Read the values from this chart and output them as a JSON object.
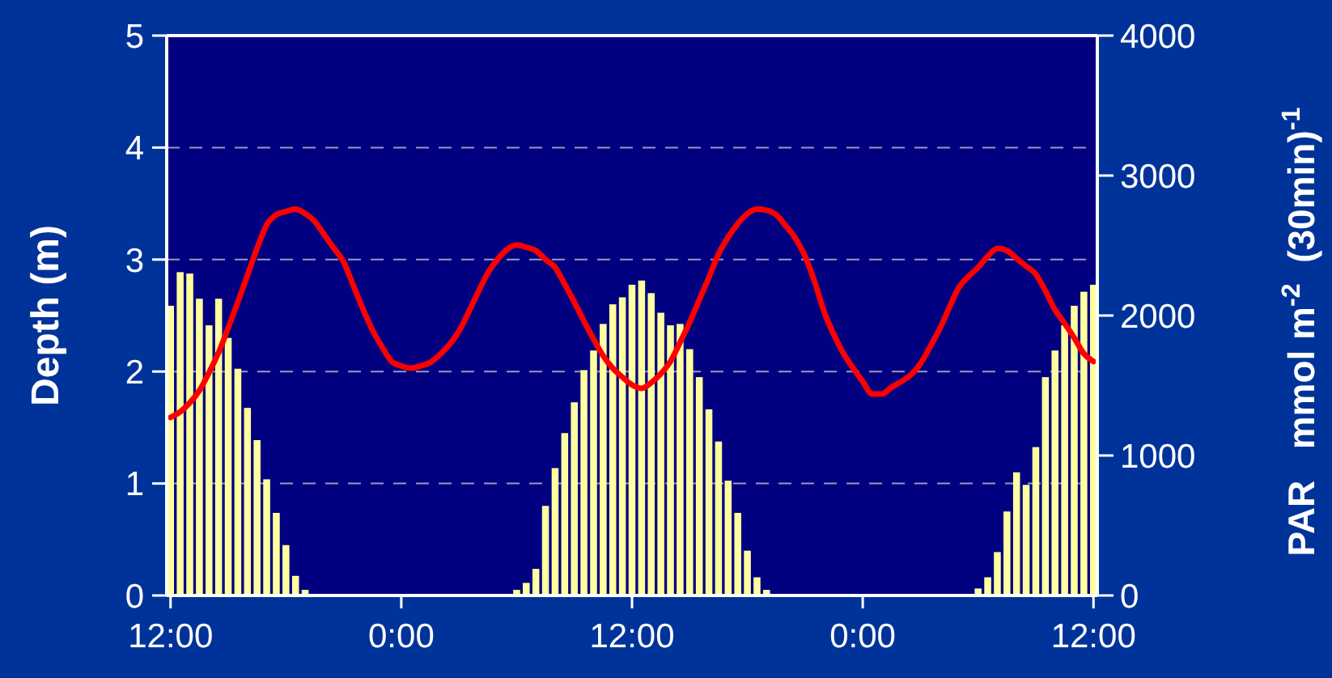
{
  "chart_data": {
    "type": "line",
    "ylabel": "Depth (m)",
    "y2label": "PAR   mmol m$^{-2}$  (30min)$^{-1}$",
    "categories": [
      "12:00",
      null,
      null,
      null,
      null,
      null,
      null,
      null,
      null,
      null,
      null,
      null,
      null,
      null,
      null,
      null,
      null,
      null,
      null,
      null,
      null,
      null,
      null,
      null,
      "0:00",
      null,
      null,
      null,
      null,
      null,
      null,
      null,
      null,
      null,
      null,
      null,
      null,
      null,
      null,
      null,
      null,
      null,
      null,
      null,
      null,
      null,
      null,
      null,
      "12:00",
      null,
      null,
      null,
      null,
      null,
      null,
      null,
      null,
      null,
      null,
      null,
      null,
      null,
      null,
      null,
      null,
      null,
      null,
      null,
      null,
      null,
      null,
      null,
      "0:00",
      null,
      null,
      null,
      null,
      null,
      null,
      null,
      null,
      null,
      null,
      null,
      null,
      null,
      null,
      null,
      null,
      null,
      null,
      null,
      null,
      null,
      null,
      null,
      "12:00"
    ],
    "ylim": [
      0,
      5
    ],
    "yticks": [
      0,
      1,
      2,
      3,
      4,
      5
    ],
    "y2lim": [
      0,
      4000
    ],
    "y2ticks": [
      0,
      1000,
      2000,
      3000,
      4000
    ],
    "grid": "y",
    "series": [
      {
        "type": "bar",
        "axis": "y2",
        "color": "#ffffa0",
        "values": [
          2070,
          2310,
          2300,
          2120,
          1930,
          2120,
          1840,
          1620,
          1340,
          1110,
          830,
          590,
          360,
          140,
          40,
          0,
          0,
          0,
          0,
          0,
          0,
          0,
          0,
          0,
          0,
          0,
          0,
          0,
          0,
          0,
          0,
          0,
          0,
          0,
          0,
          0,
          40,
          90,
          190,
          640,
          910,
          1160,
          1380,
          1610,
          1750,
          1940,
          2080,
          2130,
          2220,
          2250,
          2160,
          2020,
          1930,
          1940,
          1760,
          1560,
          1330,
          1100,
          820,
          590,
          320,
          130,
          40,
          0,
          0,
          0,
          0,
          0,
          0,
          0,
          0,
          0,
          0,
          0,
          0,
          0,
          0,
          0,
          0,
          0,
          0,
          0,
          0,
          0,
          50,
          130,
          310,
          600,
          880,
          790,
          1060,
          1560,
          1750,
          1930,
          2070,
          2170,
          2220
        ]
      },
      {
        "axis": "y",
        "color": "#ff0000",
        "line_style": "solid",
        "marker": "none",
        "values": [
          1.59,
          1.64,
          1.72,
          1.83,
          1.99,
          2.17,
          2.39,
          2.62,
          2.86,
          3.1,
          3.31,
          3.4,
          3.43,
          3.45,
          3.41,
          3.34,
          3.22,
          3.1,
          2.98,
          2.77,
          2.56,
          2.37,
          2.22,
          2.09,
          2.05,
          2.03,
          2.05,
          2.08,
          2.15,
          2.24,
          2.36,
          2.53,
          2.71,
          2.88,
          3,
          3.09,
          3.13,
          3.11,
          3.08,
          3,
          2.93,
          2.78,
          2.62,
          2.45,
          2.29,
          2.14,
          2.03,
          1.95,
          1.88,
          1.85,
          1.9,
          1.98,
          2.09,
          2.26,
          2.44,
          2.64,
          2.84,
          3.05,
          3.2,
          3.32,
          3.41,
          3.45,
          3.44,
          3.4,
          3.3,
          3.19,
          3.03,
          2.8,
          2.53,
          2.33,
          2.16,
          2.03,
          1.91,
          1.8,
          1.8,
          1.86,
          1.91,
          1.97,
          2.07,
          2.22,
          2.38,
          2.57,
          2.75,
          2.85,
          2.93,
          3.03,
          3.1,
          3.08,
          3.01,
          2.94,
          2.87,
          2.72,
          2.55,
          2.43,
          2.3,
          2.16,
          2.09
        ]
      }
    ]
  }
}
